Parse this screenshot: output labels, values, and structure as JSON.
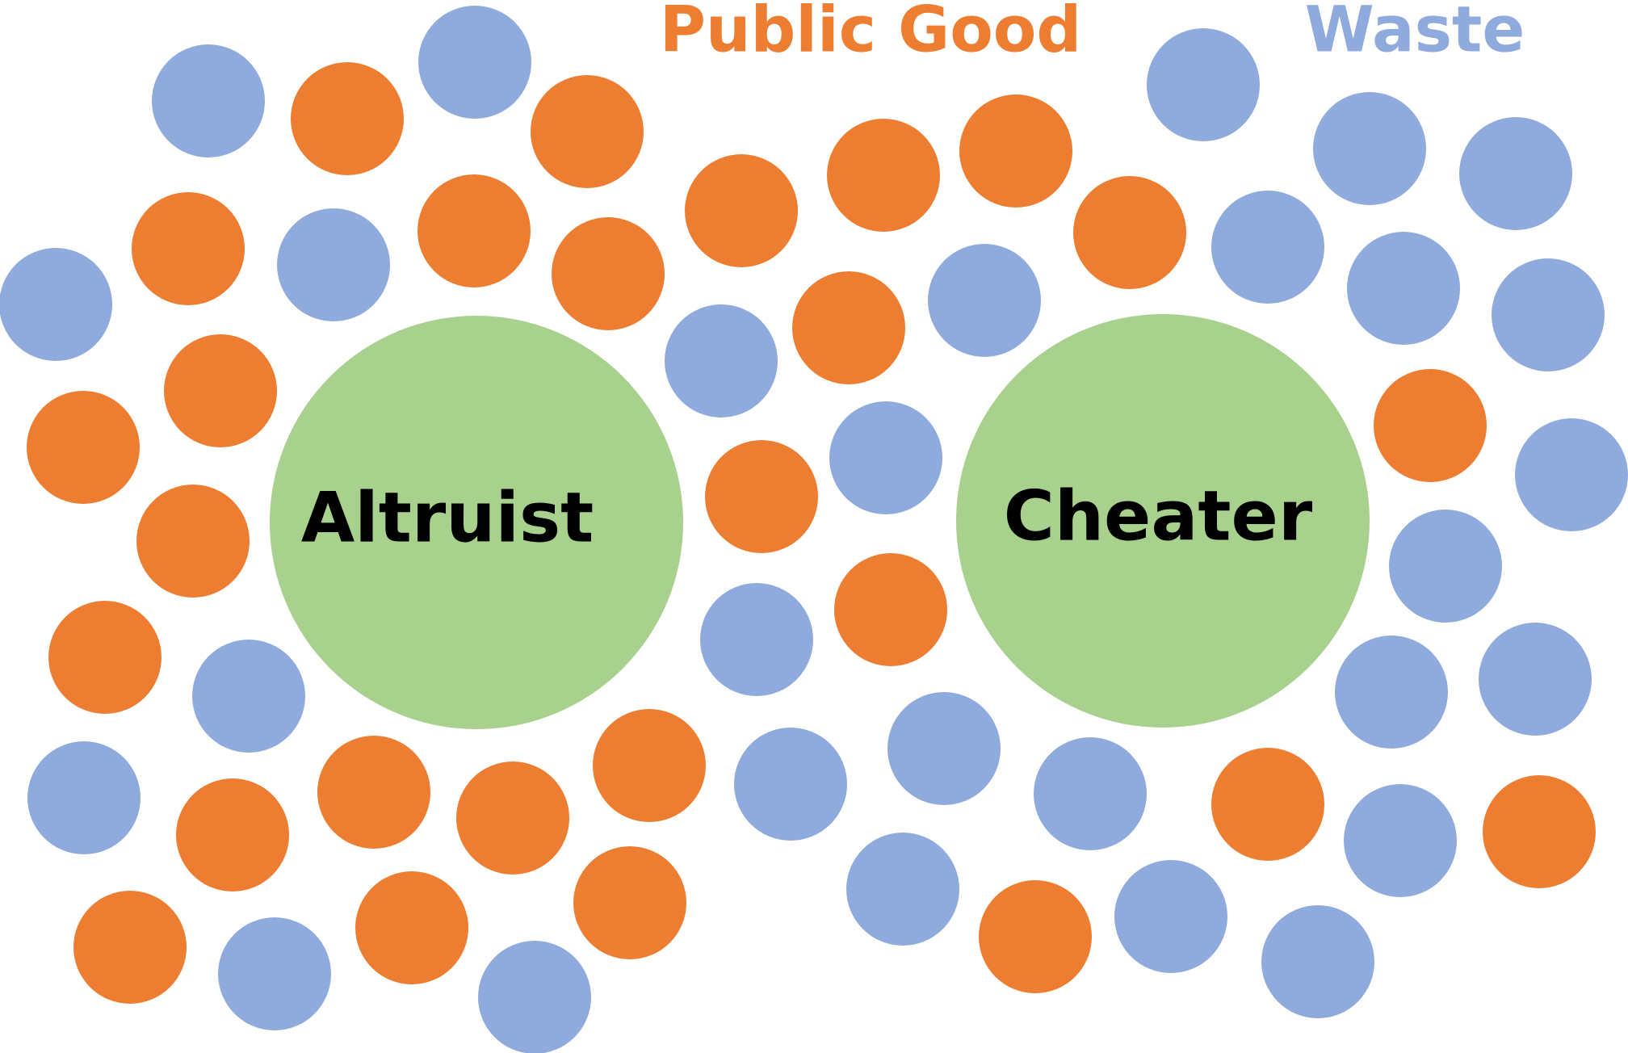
{
  "legend": {
    "public_good": {
      "label": "Public Good",
      "color": "#ED7D31"
    },
    "waste": {
      "label": "Waste",
      "color": "#8FAADC"
    }
  },
  "agents": [
    {
      "label": "Altruist",
      "color": "#A9D18E"
    },
    {
      "label": "Cheater",
      "color": "#A9D18E"
    }
  ],
  "label_color": "#000000"
}
